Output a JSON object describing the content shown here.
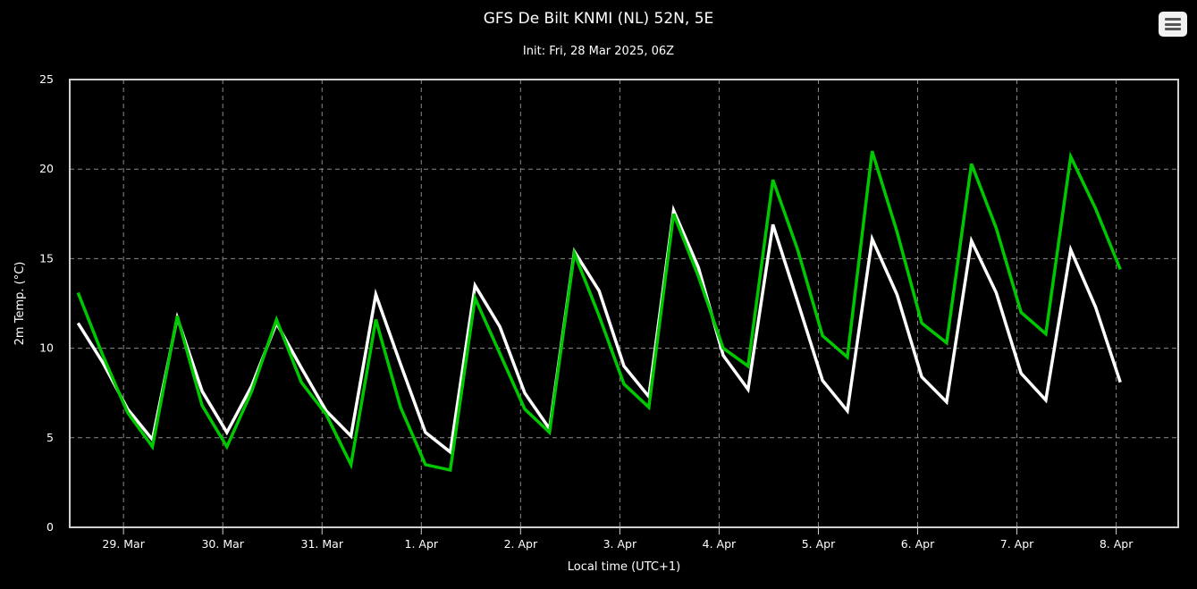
{
  "chart_data": {
    "type": "line",
    "title": "GFS De Bilt KNMI (NL) 52N, 5E",
    "subtitle": "Init: Fri, 28 Mar 2025, 06Z",
    "xlabel": "Local time (UTC+1)",
    "ylabel": "2m Temp. (°C)",
    "ylim": [
      0,
      25
    ],
    "yticks": [
      0,
      5,
      10,
      15,
      20,
      25
    ],
    "x_unit": "hours after 29 Mar 00:00 local time",
    "xlim": [
      -13,
      255
    ],
    "xticks": [
      {
        "label": "29. Mar",
        "x": 0
      },
      {
        "label": "30. Mar",
        "x": 24
      },
      {
        "label": "31. Mar",
        "x": 48
      },
      {
        "label": "1. Apr",
        "x": 72
      },
      {
        "label": "2. Apr",
        "x": 96
      },
      {
        "label": "3. Apr",
        "x": 120
      },
      {
        "label": "4. Apr",
        "x": 144
      },
      {
        "label": "5. Apr",
        "x": 168
      },
      {
        "label": "6. Apr",
        "x": 192
      },
      {
        "label": "7. Apr",
        "x": 216
      },
      {
        "label": "8. Apr",
        "x": 240
      }
    ],
    "grid": true,
    "x": [
      -11,
      -5,
      1,
      7,
      13,
      19,
      25,
      31,
      37,
      43,
      49,
      55,
      61,
      67,
      73,
      79,
      85,
      91,
      97,
      103,
      109,
      115,
      121,
      127,
      133,
      139,
      145,
      151,
      157,
      163,
      169,
      175,
      181,
      187,
      193,
      199,
      205,
      211,
      217,
      223,
      229,
      235,
      241
    ],
    "series": [
      {
        "name": "",
        "color": "#ffffff",
        "values": [
          11.4,
          9.2,
          6.6,
          4.9,
          11.7,
          7.6,
          5.3,
          7.9,
          11.4,
          8.9,
          6.5,
          5.1,
          13.0,
          9.1,
          5.3,
          4.2,
          13.5,
          11.2,
          7.5,
          5.5,
          15.4,
          13.2,
          9.0,
          7.3,
          17.7,
          14.5,
          9.6,
          7.7,
          16.9,
          12.6,
          8.2,
          6.5,
          16.1,
          13.0,
          8.4,
          7.0,
          16.0,
          13.1,
          8.6,
          7.1,
          15.5,
          12.3,
          8.1
        ]
      },
      {
        "name": "",
        "color": "#00c800",
        "values": [
          13.1,
          9.6,
          6.4,
          4.5,
          11.8,
          6.8,
          4.5,
          7.6,
          11.6,
          8.1,
          6.3,
          3.5,
          11.6,
          6.7,
          3.5,
          3.2,
          12.8,
          9.7,
          6.6,
          5.3,
          15.3,
          11.8,
          8.0,
          6.7,
          17.5,
          14.0,
          10.0,
          9.0,
          19.4,
          15.5,
          10.7,
          9.5,
          21.0,
          16.5,
          11.4,
          10.3,
          20.3,
          16.7,
          12.0,
          10.8,
          20.7,
          17.8,
          14.4
        ]
      }
    ]
  },
  "menu": {
    "icon": "hamburger-menu-icon"
  }
}
